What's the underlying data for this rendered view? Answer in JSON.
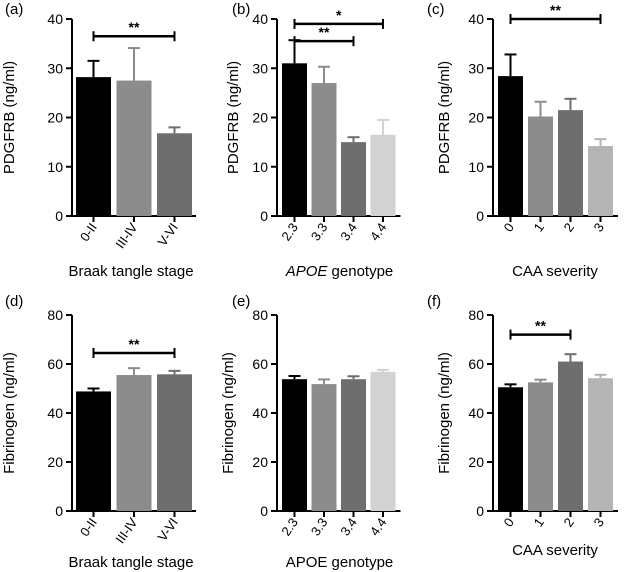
{
  "chart_data": [
    {
      "panel": "(a)",
      "type": "bar",
      "categories": [
        "0-II",
        "III-IV",
        "V-VI"
      ],
      "values": [
        28.2,
        27.5,
        16.8
      ],
      "errors": [
        3.3,
        6.6,
        1.2
      ],
      "colors": [
        "#000000",
        "#8c8c8c",
        "#6e6e6e"
      ],
      "ylabel": "PDGFRB (ng/ml)",
      "xlabel": "Braak tangle stage",
      "xlabel_italic": "",
      "ylim": [
        0,
        40
      ],
      "yticks": [
        0,
        10,
        20,
        30,
        40
      ],
      "brackets": [
        {
          "from": 0,
          "to": 2,
          "y": 36.5,
          "label": "**"
        }
      ]
    },
    {
      "panel": "(b)",
      "type": "bar",
      "categories": [
        "2.3",
        "3.3",
        "3.4",
        "4.4"
      ],
      "values": [
        31.0,
        27.0,
        15.0,
        16.5
      ],
      "errors": [
        4.7,
        3.3,
        1.0,
        3.0
      ],
      "colors": [
        "#000000",
        "#8c8c8c",
        "#6e6e6e",
        "#d2d2d2"
      ],
      "ylabel": "PDGFRB (ng/ml)",
      "xlabel": " genotype",
      "xlabel_italic": "APOE",
      "ylim": [
        0,
        40
      ],
      "yticks": [
        0,
        10,
        20,
        30,
        40
      ],
      "brackets": [
        {
          "from": 0,
          "to": 3,
          "y": 39.0,
          "label": "*"
        },
        {
          "from": 0,
          "to": 2,
          "y": 35.5,
          "label": "**"
        }
      ]
    },
    {
      "panel": "(c)",
      "type": "bar",
      "categories": [
        "0",
        "1",
        "2",
        "3"
      ],
      "values": [
        28.4,
        20.2,
        21.5,
        14.2
      ],
      "errors": [
        4.4,
        3.0,
        2.3,
        1.4
      ],
      "colors": [
        "#000000",
        "#8c8c8c",
        "#6e6e6e",
        "#b4b4b4"
      ],
      "ylabel": "PDGFRB (ng/ml)",
      "xlabel": "CAA severity",
      "xlabel_italic": "",
      "ylim": [
        0,
        40
      ],
      "yticks": [
        0,
        10,
        20,
        30,
        40
      ],
      "brackets": [
        {
          "from": 0,
          "to": 3,
          "y": 40.0,
          "label": "**"
        }
      ]
    },
    {
      "panel": "(d)",
      "type": "bar",
      "categories": [
        "0-II",
        "III-IV",
        "V-VI"
      ],
      "values": [
        48.8,
        55.5,
        55.8
      ],
      "errors": [
        1.2,
        2.8,
        1.4
      ],
      "colors": [
        "#000000",
        "#8c8c8c",
        "#6e6e6e"
      ],
      "ylabel": "Fibrinogen (ng/ml)",
      "xlabel": "Braak tangle stage",
      "xlabel_italic": "",
      "ylim": [
        0,
        80
      ],
      "yticks": [
        0,
        20,
        40,
        60,
        80
      ],
      "brackets": [
        {
          "from": 0,
          "to": 2,
          "y": 64.5,
          "label": "**"
        }
      ]
    },
    {
      "panel": "(e)",
      "type": "bar",
      "categories": [
        "2.3",
        "3.3",
        "3.4",
        "4.4"
      ],
      "values": [
        53.8,
        51.8,
        53.8,
        56.8
      ],
      "errors": [
        1.3,
        1.9,
        1.2,
        0.8
      ],
      "colors": [
        "#000000",
        "#8c8c8c",
        "#6e6e6e",
        "#d2d2d2"
      ],
      "ylabel": "Fibrinogen (ng/ml)",
      "xlabel": "APOE genotype",
      "xlabel_italic": "",
      "ylim": [
        0,
        80
      ],
      "yticks": [
        0,
        20,
        40,
        60,
        80
      ],
      "brackets": []
    },
    {
      "panel": "(f)",
      "type": "bar",
      "categories": [
        "0",
        "1",
        "2",
        "3"
      ],
      "values": [
        50.5,
        52.5,
        61.0,
        54.2
      ],
      "errors": [
        1.2,
        1.1,
        3.0,
        1.4
      ],
      "colors": [
        "#000000",
        "#8c8c8c",
        "#6e6e6e",
        "#b4b4b4"
      ],
      "ylabel": "Fibrinogen (ng/ml)",
      "xlabel": "CAA severity",
      "xlabel_italic": "",
      "ylim": [
        0,
        80
      ],
      "yticks": [
        0,
        20,
        40,
        60,
        80
      ],
      "brackets": [
        {
          "from": 0,
          "to": 2,
          "y": 72.0,
          "label": "**"
        }
      ]
    }
  ]
}
